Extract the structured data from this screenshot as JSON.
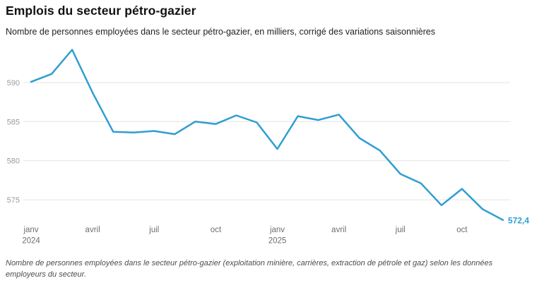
{
  "header": {
    "title": "Emplois du secteur pétro-gazier",
    "subtitle": "Nombre de personnes employées dans le secteur pétro-gazier, en milliers, corrigé des variations saisonnières"
  },
  "footer": {
    "note": "Nombre de personnes employées dans le secteur pétro-gazier (exploitation minière, carrières, extraction de pétrole et gaz) selon les données employeurs du secteur."
  },
  "chart_data": {
    "type": "line",
    "title": "Emplois du secteur pétro-gazier",
    "xlabel": "",
    "ylabel": "",
    "x": [
      "janv 2024",
      "févr 2024",
      "mars 2024",
      "avril 2024",
      "mai 2024",
      "juin 2024",
      "juil 2024",
      "août 2024",
      "sept 2024",
      "oct 2024",
      "nov 2024",
      "déc 2024",
      "janv 2025",
      "févr 2025",
      "mars 2025",
      "avril 2025",
      "mai 2025",
      "juin 2025",
      "juil 2025",
      "août 2025",
      "sept 2025",
      "oct 2025",
      "nov 2025",
      "déc 2025"
    ],
    "values": [
      590.1,
      591.1,
      594.2,
      588.7,
      583.7,
      583.6,
      583.8,
      583.4,
      585.0,
      584.7,
      585.8,
      584.9,
      581.5,
      585.7,
      585.2,
      585.9,
      582.9,
      581.3,
      578.3,
      577.1,
      574.3,
      576.4,
      573.8,
      572.4
    ],
    "x_ticks": [
      {
        "i": 0,
        "label": "janv",
        "year": "2024"
      },
      {
        "i": 3,
        "label": "avril"
      },
      {
        "i": 6,
        "label": "juil"
      },
      {
        "i": 9,
        "label": "oct"
      },
      {
        "i": 12,
        "label": "janv",
        "year": "2025"
      },
      {
        "i": 15,
        "label": "avril"
      },
      {
        "i": 18,
        "label": "juil"
      },
      {
        "i": 21,
        "label": "oct"
      }
    ],
    "y_ticks": [
      590,
      585,
      580,
      575
    ],
    "ylim": [
      571,
      595
    ],
    "grid": true,
    "legend_position": "none",
    "end_label": "572,4",
    "colors": {
      "line": "#2f9ed0",
      "grid": "#e4e4e4",
      "y_tick_text": "#9b9b9b",
      "x_tick_text": "#6f6f6f",
      "title": "#111111",
      "subtitle": "#222222",
      "note": "#4d4d4d"
    }
  }
}
